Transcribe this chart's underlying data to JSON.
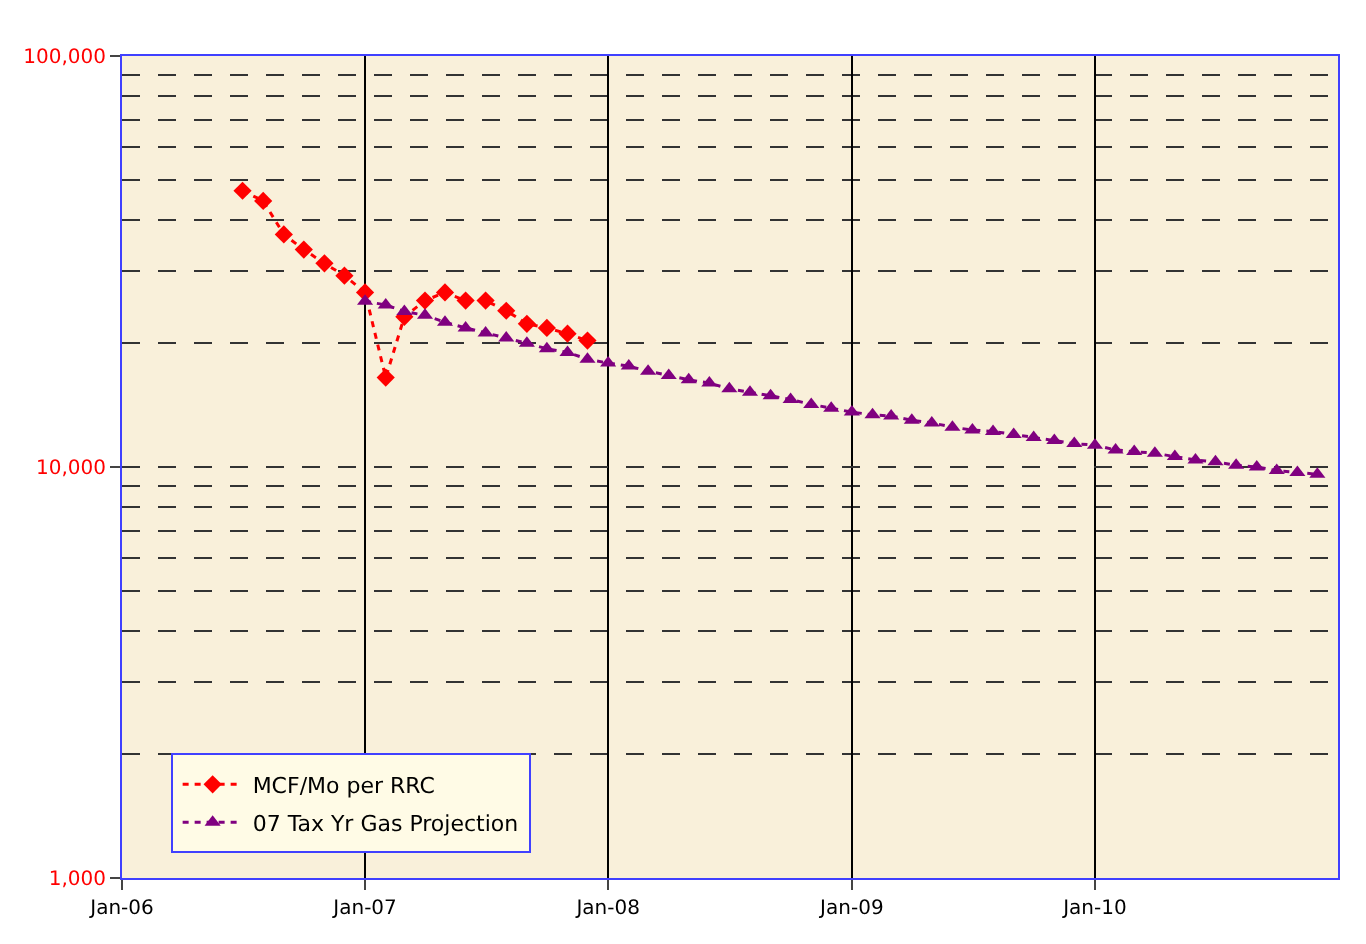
{
  "chart_data": {
    "type": "line",
    "x": [
      "2006-07",
      "2006-08",
      "2006-09",
      "2006-10",
      "2006-11",
      "2006-12",
      "2007-01",
      "2007-02",
      "2007-03",
      "2007-04",
      "2007-05",
      "2007-06",
      "2007-07",
      "2007-08",
      "2007-09",
      "2007-10",
      "2007-11",
      "2007-12"
    ],
    "series": [
      {
        "name": "MCF/Mo per RRC",
        "color": "#ff0000",
        "marker": "diamond",
        "line_style": "dotted",
        "values": [
          47000,
          44400,
          36800,
          33800,
          31300,
          29200,
          26600,
          16500,
          23200,
          25400,
          26600,
          25400,
          25400,
          24000,
          22300,
          21800,
          21100,
          20300
        ]
      },
      {
        "name": "07 Tax Yr Gas Projection",
        "color": "#800080",
        "marker": "triangle",
        "line_style": "dotted",
        "x": [
          "2007-01",
          "2007-02",
          "2007-03",
          "2007-04",
          "2007-05",
          "2007-06",
          "2007-07",
          "2007-08",
          "2007-09",
          "2007-10",
          "2007-11",
          "2007-12",
          "2008-01",
          "2008-02",
          "2008-03",
          "2008-04",
          "2008-05",
          "2008-06",
          "2008-07",
          "2008-08",
          "2008-09",
          "2008-10",
          "2008-11",
          "2008-12",
          "2009-01",
          "2009-02",
          "2009-03",
          "2009-04",
          "2009-05",
          "2009-06",
          "2009-07",
          "2009-08",
          "2009-09",
          "2009-10",
          "2009-11",
          "2009-12",
          "2010-01",
          "2010-02",
          "2010-03",
          "2010-04",
          "2010-05",
          "2010-06",
          "2010-07",
          "2010-08",
          "2010-09",
          "2010-10",
          "2010-11",
          "2010-12"
        ],
        "values": [
          25300,
          24800,
          23900,
          23400,
          22500,
          21800,
          21200,
          20600,
          20000,
          19400,
          19000,
          18300,
          17900,
          17600,
          17100,
          16700,
          16300,
          16000,
          15500,
          15200,
          14900,
          14600,
          14200,
          13900,
          13600,
          13400,
          13300,
          13000,
          12800,
          12500,
          12300,
          12200,
          12000,
          11800,
          11600,
          11400,
          11300,
          11000,
          10900,
          10800,
          10600,
          10400,
          10300,
          10100,
          10000,
          9800,
          9700,
          9600
        ]
      }
    ],
    "log": true,
    "ylim": [
      1000,
      100000
    ],
    "yticks": [
      {
        "value": 1000,
        "label": "1,000"
      },
      {
        "value": 10000,
        "label": "10,000"
      },
      {
        "value": 100000,
        "label": "100,000"
      }
    ],
    "xlim": [
      "2006-01",
      "2011-01"
    ],
    "xticks": [
      {
        "value": "2006-01",
        "label": "Jan-06"
      },
      {
        "value": "2007-01",
        "label": "Jan-07"
      },
      {
        "value": "2008-01",
        "label": "Jan-08"
      },
      {
        "value": "2009-01",
        "label": "Jan-09"
      },
      {
        "value": "2010-01",
        "label": "Jan-10"
      }
    ],
    "grid": true,
    "legend": "bottom left"
  }
}
